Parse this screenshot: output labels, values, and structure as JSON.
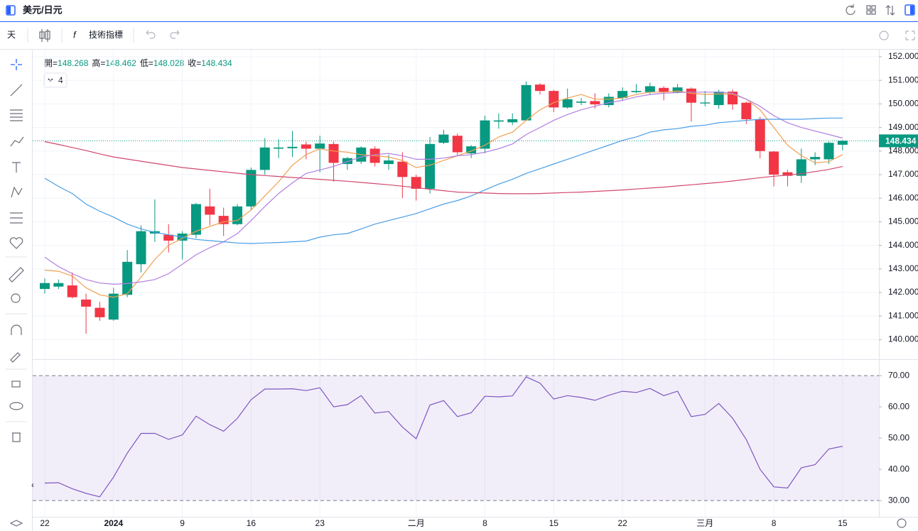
{
  "ui": {
    "symbol": "美元/日元",
    "interval": "天",
    "indicators": "技術指標",
    "indicator_count": "4",
    "open_label": "開=",
    "high_label": "高=",
    "low_label": "低=",
    "close_label": "收="
  },
  "chart_data": [
    {
      "type": "candlestick",
      "categories": [
        "22",
        null,
        null,
        null,
        null,
        "2024",
        null,
        null,
        null,
        null,
        "9",
        null,
        null,
        null,
        null,
        "16",
        null,
        null,
        null,
        null,
        "23",
        null,
        null,
        null,
        null,
        null,
        null,
        "二月",
        null,
        null,
        null,
        null,
        "8",
        null,
        null,
        null,
        null,
        "15",
        null,
        null,
        null,
        null,
        "22",
        null,
        null,
        null,
        null,
        null,
        "三月",
        null,
        null,
        null,
        null,
        "8",
        null,
        null,
        null,
        null,
        "15"
      ],
      "open": [
        142.15,
        142.25,
        142.3,
        141.7,
        141.35,
        140.85,
        141.9,
        143.2,
        144.5,
        144.45,
        144.2,
        144.45,
        145.65,
        145.25,
        144.9,
        145.65,
        147.2,
        148.1,
        148.12,
        148.28,
        148.1,
        148.3,
        147.45,
        147.55,
        148.1,
        147.45,
        147.55,
        146.9,
        146.4,
        148.35,
        148.65,
        147.9,
        148.1,
        149.25,
        149.22,
        149.3,
        150.82,
        150.55,
        149.85,
        150.05,
        150.12,
        149.95,
        150.25,
        150.5,
        150.5,
        150.68,
        150.5,
        150.65,
        150.02,
        149.95,
        150.52,
        150.05,
        149.35,
        147.98,
        147.1,
        146.95,
        147.65,
        147.65,
        148.268
      ],
      "high": [
        142.6,
        142.55,
        142.85,
        141.95,
        141.6,
        142.2,
        143.8,
        144.85,
        145.95,
        144.9,
        144.6,
        145.8,
        146.4,
        145.6,
        145.75,
        147.3,
        148.55,
        148.5,
        148.85,
        148.4,
        148.65,
        148.4,
        147.75,
        148.2,
        148.2,
        147.85,
        147.95,
        147.0,
        148.6,
        148.9,
        148.75,
        148.25,
        149.5,
        149.6,
        149.6,
        150.95,
        150.88,
        150.6,
        150.65,
        150.25,
        150.45,
        150.45,
        150.7,
        150.85,
        150.9,
        150.75,
        150.85,
        150.7,
        150.55,
        150.6,
        150.62,
        150.1,
        149.45,
        148.0,
        147.2,
        148.1,
        147.95,
        148.4,
        148.462
      ],
      "low": [
        141.95,
        142.15,
        141.75,
        140.25,
        140.8,
        140.8,
        141.8,
        142.85,
        144.15,
        143.7,
        143.4,
        144.3,
        144.85,
        144.4,
        144.85,
        145.5,
        147.0,
        147.7,
        147.75,
        147.65,
        147.1,
        146.7,
        147.2,
        147.45,
        147.35,
        147.2,
        146.0,
        145.9,
        146.2,
        148.3,
        147.8,
        147.7,
        147.9,
        148.95,
        149.1,
        149.3,
        150.4,
        149.65,
        149.8,
        149.95,
        149.8,
        149.85,
        150.15,
        150.45,
        150.4,
        150.15,
        150.45,
        149.25,
        149.9,
        149.8,
        149.75,
        149.15,
        147.7,
        146.5,
        146.5,
        146.65,
        147.4,
        147.45,
        148.028
      ],
      "close": [
        142.4,
        142.4,
        141.8,
        141.4,
        140.95,
        141.95,
        143.3,
        144.6,
        144.6,
        144.2,
        144.5,
        145.75,
        145.3,
        144.9,
        145.65,
        147.2,
        148.15,
        148.15,
        148.18,
        148.1,
        148.32,
        147.5,
        147.7,
        148.15,
        147.5,
        147.6,
        146.9,
        146.4,
        148.3,
        148.7,
        147.95,
        148.2,
        149.3,
        149.3,
        149.35,
        150.8,
        150.55,
        149.85,
        150.2,
        150.1,
        149.98,
        150.3,
        150.55,
        150.55,
        150.75,
        150.5,
        150.7,
        150.05,
        150.06,
        150.52,
        149.98,
        149.35,
        148.0,
        147.0,
        146.95,
        147.65,
        147.75,
        148.35,
        148.434
      ],
      "up_color": "#089981",
      "down_color": "#f23645",
      "series": [
        {
          "color": "#f0a050",
          "values": [
            142.95,
            142.9,
            142.7,
            142.2,
            141.9,
            141.8,
            141.95,
            142.65,
            143.4,
            144.0,
            144.3,
            144.6,
            144.8,
            145.0,
            145.05,
            145.5,
            146.1,
            146.7,
            147.4,
            147.85,
            148.1,
            148.0,
            147.95,
            147.85,
            147.8,
            147.75,
            147.6,
            147.3,
            147.4,
            147.6,
            147.8,
            148.0,
            148.25,
            148.6,
            148.8,
            149.3,
            149.75,
            150.05,
            150.25,
            150.4,
            150.2,
            150.2,
            150.25,
            150.4,
            150.5,
            150.5,
            150.55,
            150.45,
            150.4,
            150.42,
            150.42,
            150.2,
            149.75,
            149.0,
            148.25,
            147.8,
            147.5,
            147.55,
            147.85
          ]
        },
        {
          "color": "#b27fe0",
          "values": [
            143.5,
            143.1,
            142.8,
            142.55,
            142.4,
            142.35,
            142.38,
            142.45,
            142.55,
            142.8,
            143.2,
            143.6,
            143.9,
            144.15,
            144.5,
            145.05,
            145.65,
            146.2,
            146.65,
            147.05,
            147.2,
            147.35,
            147.55,
            147.75,
            147.85,
            147.9,
            147.8,
            147.65,
            147.65,
            147.7,
            147.8,
            147.85,
            147.95,
            148.1,
            148.3,
            148.7,
            149.0,
            149.3,
            149.55,
            149.75,
            149.9,
            150.05,
            150.15,
            150.3,
            150.4,
            150.45,
            150.48,
            150.5,
            150.5,
            150.5,
            150.45,
            150.2,
            149.9,
            149.5,
            149.2,
            149.0,
            148.85,
            148.7,
            148.55
          ]
        },
        {
          "color": "#4a9ee6",
          "values": [
            146.85,
            146.5,
            146.2,
            145.75,
            145.45,
            145.2,
            144.9,
            144.7,
            144.55,
            144.45,
            144.35,
            144.25,
            144.2,
            144.15,
            144.1,
            144.08,
            144.1,
            144.12,
            144.15,
            144.18,
            144.35,
            144.45,
            144.5,
            144.7,
            144.9,
            145.05,
            145.2,
            145.35,
            145.55,
            145.75,
            145.9,
            146.1,
            146.35,
            146.6,
            146.8,
            147.05,
            147.25,
            147.45,
            147.65,
            147.85,
            148.05,
            148.25,
            148.45,
            148.6,
            148.8,
            148.9,
            148.95,
            149.05,
            149.1,
            149.2,
            149.25,
            149.3,
            149.35,
            149.35,
            149.35,
            149.35,
            149.38,
            149.4,
            149.4
          ]
        },
        {
          "color": "#d2486e",
          "values": [
            148.4,
            148.28,
            148.15,
            148.02,
            147.88,
            147.75,
            147.66,
            147.57,
            147.48,
            147.39,
            147.3,
            147.24,
            147.18,
            147.12,
            147.06,
            147.0,
            146.96,
            146.92,
            146.88,
            146.84,
            146.8,
            146.76,
            146.72,
            146.67,
            146.62,
            146.57,
            146.51,
            146.45,
            146.38,
            146.32,
            146.26,
            146.24,
            146.22,
            146.2,
            146.19,
            146.19,
            146.2,
            146.22,
            146.24,
            146.26,
            146.29,
            146.32,
            146.35,
            146.39,
            146.43,
            146.47,
            146.52,
            146.57,
            146.62,
            146.67,
            146.73,
            146.8,
            146.87,
            146.93,
            146.98,
            147.04,
            147.13,
            147.22,
            147.35
          ]
        }
      ],
      "ylim": [
        139.2,
        152.3
      ],
      "yticks": [
        {
          "value": 140,
          "label": "140.000"
        },
        {
          "value": 141,
          "label": "141.000"
        },
        {
          "value": 142,
          "label": "142.000"
        },
        {
          "value": 143,
          "label": "143.000"
        },
        {
          "value": 144,
          "label": "144.000"
        },
        {
          "value": 145,
          "label": "145.000"
        },
        {
          "value": 146,
          "label": "146.000"
        },
        {
          "value": 147,
          "label": "147.000"
        },
        {
          "value": 148,
          "label": "148.000"
        },
        {
          "value": 149,
          "label": "149.000"
        },
        {
          "value": 150,
          "label": "150.000"
        },
        {
          "value": 151,
          "label": "151.000"
        },
        {
          "value": 152,
          "label": "152.000"
        }
      ],
      "grid": true
    },
    {
      "type": "line",
      "series": [
        {
          "color": "#7e57c2",
          "values": [
            35.6,
            35.7,
            33.8,
            32.3,
            31.2,
            37.5,
            45.2,
            51.5,
            51.5,
            49.6,
            51.0,
            57.0,
            54.3,
            52.2,
            56.3,
            62.3,
            65.7,
            65.7,
            65.8,
            65.2,
            66.1,
            60.0,
            60.7,
            63.6,
            58.0,
            58.5,
            53.5,
            49.8,
            60.6,
            62.0,
            56.9,
            58.1,
            63.4,
            63.2,
            63.5,
            69.6,
            67.6,
            62.5,
            63.6,
            63.0,
            62.1,
            63.7,
            65.0,
            64.6,
            65.9,
            63.6,
            65.0,
            56.9,
            57.6,
            61.1,
            56.4,
            49.5,
            40.0,
            34.4,
            34.0,
            40.5,
            41.5,
            46.5,
            47.4
          ]
        }
      ],
      "band_color": "#7e57c2",
      "ylim": [
        24.8,
        74.8
      ],
      "yticks": [
        {
          "value": 30,
          "label": "30.00"
        },
        {
          "value": 40,
          "label": "40.00"
        },
        {
          "value": 50,
          "label": "50.00"
        },
        {
          "value": 60,
          "label": "60.00"
        },
        {
          "value": 70,
          "label": "70.00"
        }
      ]
    }
  ]
}
